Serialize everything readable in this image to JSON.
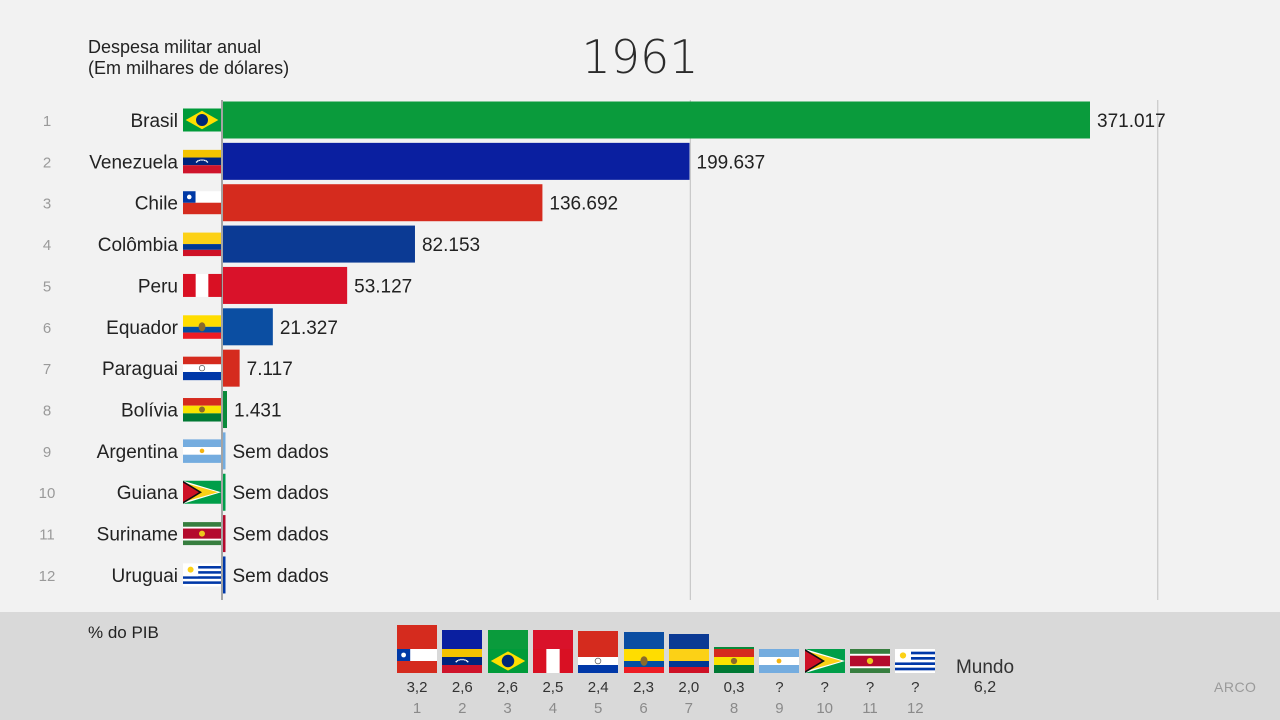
{
  "header": {
    "title_line1": "Despesa militar anual",
    "title_line2": "(Em milhares de dólares)",
    "year": "1961"
  },
  "chart_data": [
    {
      "type": "bar",
      "orientation": "horizontal",
      "categories": [
        "Brasil",
        "Venezuela",
        "Chile",
        "Colômbia",
        "Peru",
        "Equador",
        "Paraguai",
        "Bolívia",
        "Argentina",
        "Guiana",
        "Suriname",
        "Uruguai"
      ],
      "ranks": [
        "1",
        "2",
        "3",
        "4",
        "5",
        "6",
        "7",
        "8",
        "9",
        "10",
        "11",
        "12"
      ],
      "values": [
        371017,
        199637,
        136692,
        82153,
        53127,
        21327,
        7117,
        1431,
        null,
        null,
        null,
        null
      ],
      "value_labels": [
        "371.017",
        "199.637",
        "136.692",
        "82.153",
        "53.127",
        "21.327",
        "7.117",
        "1.431",
        "Sem dados",
        "Sem dados",
        "Sem dados",
        "Sem dados"
      ],
      "bar_colors": [
        "#0a9b3c",
        "#0a1fa0",
        "#d52b1e",
        "#0b3a94",
        "#d9122a",
        "#0b4ea2",
        "#d52b1e",
        "#0a8a3a",
        "#74acdf",
        "#009e49",
        "#b40a2d",
        "#0038a8"
      ],
      "flags": [
        "brazil-flag",
        "venezuela-flag",
        "chile-flag",
        "colombia-flag",
        "peru-flag",
        "ecuador-flag",
        "paraguay-flag",
        "bolivia-flag",
        "argentina-flag",
        "guyana-flag",
        "suriname-flag",
        "uruguay-flag"
      ],
      "gridlines": [
        200000,
        400000
      ],
      "xlim": [
        0,
        400000
      ]
    },
    {
      "type": "bar",
      "title": "% do PIB",
      "categories": [
        "Chile",
        "Venezuela",
        "Brasil",
        "Peru",
        "Paraguai",
        "Equador",
        "Colômbia",
        "Bolívia",
        "Argentina",
        "Guiana",
        "Suriname",
        "Uruguai"
      ],
      "flags": [
        "chile-flag",
        "venezuela-flag",
        "brazil-flag",
        "peru-flag",
        "paraguay-flag",
        "ecuador-flag",
        "colombia-flag",
        "bolivia-flag",
        "argentina-flag",
        "guyana-flag",
        "suriname-flag",
        "uruguay-flag"
      ],
      "values": [
        3.2,
        2.6,
        2.6,
        2.5,
        2.4,
        2.3,
        2.0,
        0.3,
        null,
        null,
        null,
        null
      ],
      "value_labels": [
        "3,2",
        "2,6",
        "2,6",
        "2,5",
        "2,4",
        "2,3",
        "2,0",
        "0,3",
        "?",
        "?",
        "?",
        "?"
      ],
      "ranks": [
        "1",
        "2",
        "3",
        "4",
        "5",
        "6",
        "7",
        "8",
        "9",
        "10",
        "11",
        "12"
      ],
      "bar_colors": [
        "#d52b1e",
        "#0a1fa0",
        "#0a9b3c",
        "#d9122a",
        "#d52b1e",
        "#0b4ea2",
        "#0b3a94",
        "#0a8a3a",
        "#74acdf",
        "#009e49",
        "#b40a2d",
        "#0038a8"
      ],
      "world_label": "Mundo",
      "world_value": "6,2"
    }
  ],
  "footer": {
    "watermark": "ARCO"
  }
}
